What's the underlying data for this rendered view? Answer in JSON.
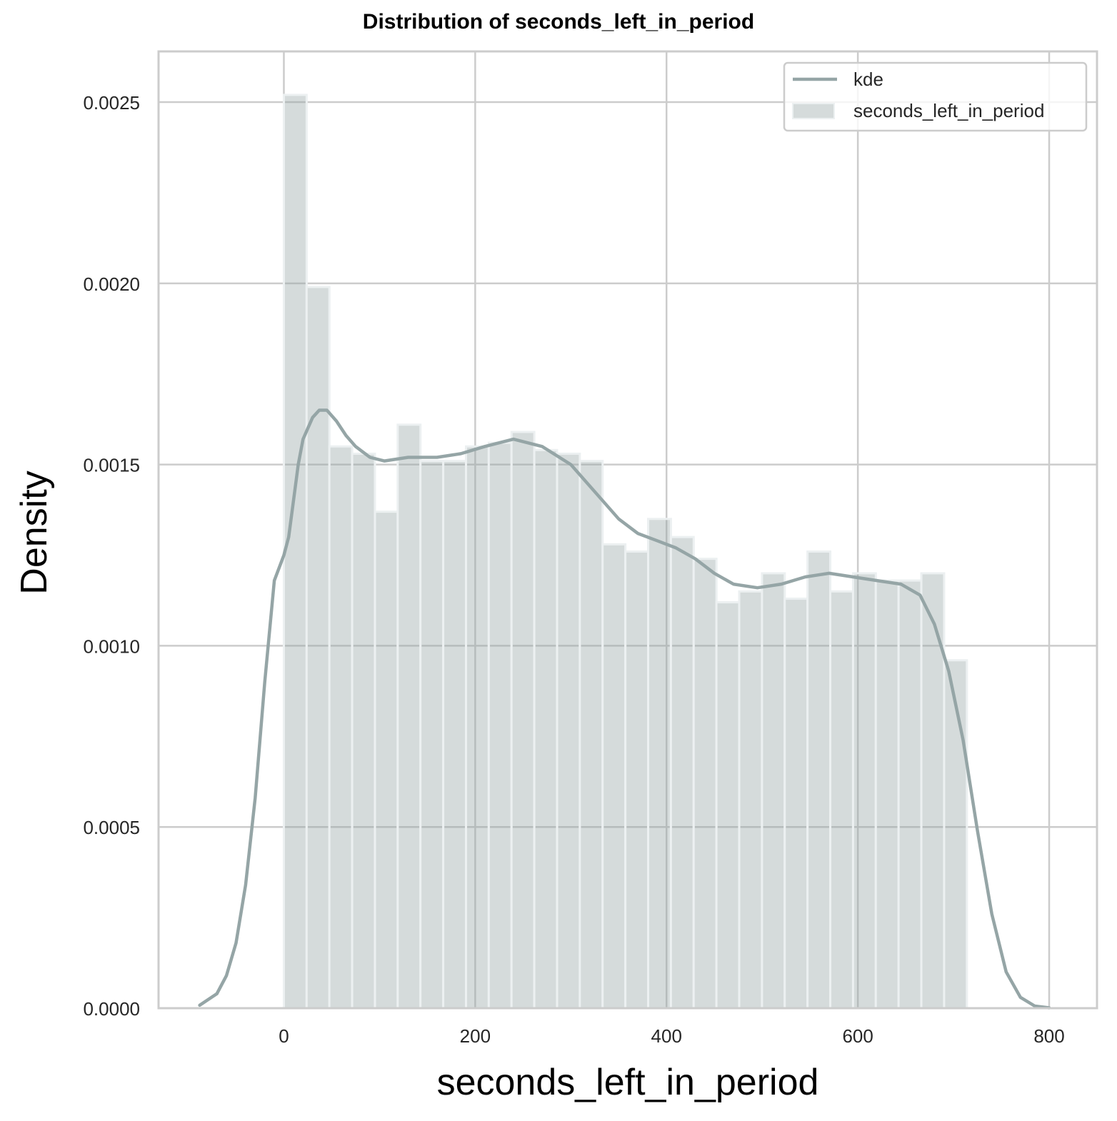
{
  "chart_data": {
    "type": "bar",
    "title": "Distribution of seconds_left_in_period",
    "xlabel": "seconds_left_in_period",
    "ylabel": "Density",
    "xlim": [
      -131,
      850
    ],
    "ylim": [
      0,
      0.00264
    ],
    "xticks": [
      0,
      200,
      400,
      600,
      800
    ],
    "xtick_labels": [
      "0",
      "200",
      "400",
      "600",
      "800"
    ],
    "yticks": [
      0,
      0.0005,
      0.001,
      0.0015,
      0.002,
      0.0025
    ],
    "ytick_labels": [
      "0.0000",
      "0.0005",
      "0.0010",
      "0.0015",
      "0.0020",
      "0.0025"
    ],
    "grid": true,
    "legend_position": "top-right",
    "legend": [
      "kde",
      "seconds_left_in_period"
    ],
    "histogram": {
      "name": "seconds_left_in_period",
      "bin_start": 0,
      "bin_width": 23.8,
      "values": [
        0.00252,
        0.00199,
        0.00155,
        0.00153,
        0.00137,
        0.00161,
        0.00151,
        0.00151,
        0.00155,
        0.00156,
        0.00159,
        0.00154,
        0.00153,
        0.00151,
        0.00128,
        0.00126,
        0.00135,
        0.0013,
        0.00124,
        0.00112,
        0.00115,
        0.0012,
        0.00113,
        0.00126,
        0.00115,
        0.0012,
        0.00118,
        0.00118,
        0.0012,
        0.00096
      ]
    },
    "kde": {
      "name": "kde",
      "points": [
        [
          -88,
          8e-06
        ],
        [
          -70,
          4e-05
        ],
        [
          -60,
          9e-05
        ],
        [
          -50,
          0.00018
        ],
        [
          -40,
          0.00034
        ],
        [
          -30,
          0.00058
        ],
        [
          -20,
          0.0009
        ],
        [
          -10,
          0.00118
        ],
        [
          0,
          0.00125
        ],
        [
          5,
          0.0013
        ],
        [
          10,
          0.0014
        ],
        [
          15,
          0.0015
        ],
        [
          20,
          0.00157
        ],
        [
          30,
          0.00163
        ],
        [
          37,
          0.00165
        ],
        [
          45,
          0.00165
        ],
        [
          55,
          0.00162
        ],
        [
          65,
          0.00158
        ],
        [
          75,
          0.00155
        ],
        [
          90,
          0.00152
        ],
        [
          105,
          0.00151
        ],
        [
          130,
          0.00152
        ],
        [
          160,
          0.00152
        ],
        [
          185,
          0.00153
        ],
        [
          210,
          0.00155
        ],
        [
          240,
          0.00157
        ],
        [
          270,
          0.00155
        ],
        [
          300,
          0.0015
        ],
        [
          330,
          0.00141
        ],
        [
          350,
          0.00135
        ],
        [
          370,
          0.00131
        ],
        [
          390,
          0.00129
        ],
        [
          410,
          0.00127
        ],
        [
          430,
          0.00124
        ],
        [
          450,
          0.0012
        ],
        [
          470,
          0.00117
        ],
        [
          495,
          0.00116
        ],
        [
          520,
          0.00117
        ],
        [
          545,
          0.00119
        ],
        [
          570,
          0.0012
        ],
        [
          595,
          0.00119
        ],
        [
          620,
          0.00118
        ],
        [
          645,
          0.00117
        ],
        [
          665,
          0.00114
        ],
        [
          680,
          0.00106
        ],
        [
          695,
          0.00093
        ],
        [
          710,
          0.00074
        ],
        [
          725,
          0.00049
        ],
        [
          740,
          0.00026
        ],
        [
          755,
          0.0001
        ],
        [
          770,
          3e-05
        ],
        [
          785,
          6e-06
        ],
        [
          800,
          1e-06
        ]
      ]
    },
    "colors": {
      "bar_fill": "#95a5a6",
      "bar_edge": "#ecf0f1",
      "kde_line": "#95a5a6",
      "grid": "#cccccc",
      "axes_edge": "#cccccc",
      "tick_text": "#262626"
    }
  }
}
